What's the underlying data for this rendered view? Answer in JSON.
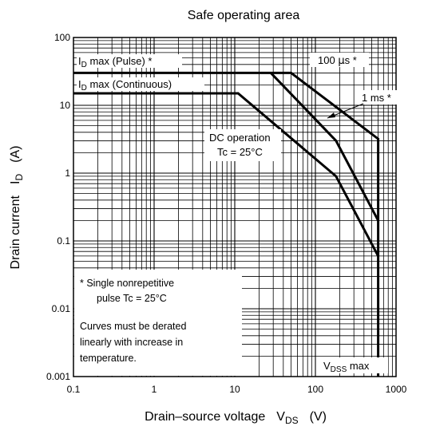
{
  "chart_data": {
    "type": "line",
    "title": "Safe operating area",
    "xscale": "log",
    "yscale": "log",
    "xlim": [
      0.1,
      1000
    ],
    "ylim": [
      0.001,
      100
    ],
    "grid": true,
    "xlabel": {
      "main": "Drain–source voltage",
      "sym": "V",
      "sub": "DS",
      "unit": "(V)"
    },
    "ylabel": {
      "main": "Drain current",
      "sym": "I",
      "sub": "D",
      "unit": "(A)"
    },
    "xticks": [
      {
        "v": 0.1,
        "label": "0.1"
      },
      {
        "v": 1,
        "label": "1"
      },
      {
        "v": 10,
        "label": "10"
      },
      {
        "v": 100,
        "label": "100"
      },
      {
        "v": 1000,
        "label": "1000"
      }
    ],
    "yticks": [
      {
        "v": 0.001,
        "label": "0.001"
      },
      {
        "v": 0.01,
        "label": "0.01"
      },
      {
        "v": 0.1,
        "label": "0.1"
      },
      {
        "v": 1,
        "label": "1"
      },
      {
        "v": 10,
        "label": "10"
      },
      {
        "v": 100,
        "label": "100"
      }
    ],
    "series": [
      {
        "key": "us100",
        "points": [
          [
            0.1,
            30
          ],
          [
            50,
            30
          ],
          [
            600,
            3.2
          ],
          [
            600,
            0.001
          ]
        ]
      },
      {
        "key": "ms1",
        "points": [
          [
            28,
            30
          ],
          [
            180,
            3
          ],
          [
            600,
            0.2
          ]
        ]
      },
      {
        "key": "dc",
        "points": [
          [
            0.1,
            15
          ],
          [
            11,
            15
          ],
          [
            180,
            0.9
          ],
          [
            600,
            0.06
          ]
        ]
      }
    ],
    "vdss": 600,
    "annotations": {
      "id_pulse": {
        "sym": "I",
        "sub": "D",
        "rest": " max (Pulse) *"
      },
      "id_cont": {
        "sym": "I",
        "sub": "D",
        "rest": " max (Continuous)"
      },
      "us100": {
        "pre": "100 ",
        "mu": "µ",
        "post": "s *"
      },
      "ms1": "1 ms *",
      "dc_line1": "DC operation",
      "dc_line2": "Tc = 25°C",
      "vdss": {
        "sym": "V",
        "sub": "DSS",
        "rest": " max"
      },
      "note_line1": "*  Single nonrepetitive",
      "note_line2": "pulse   Tc = 25°C",
      "note_line3": "Curves must be derated",
      "note_line4": "linearly with increase in",
      "note_line5": "temperature."
    }
  }
}
